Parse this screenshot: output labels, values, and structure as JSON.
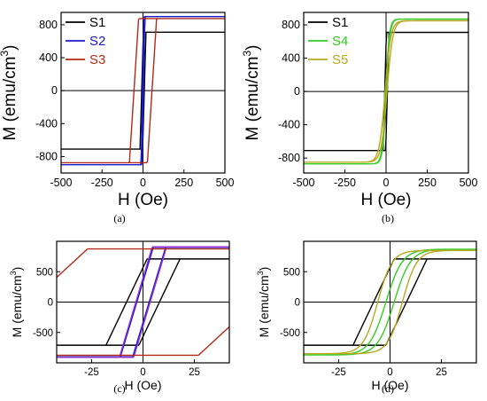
{
  "chart_data": [
    {
      "panel": "(a)",
      "type": "line",
      "xlabel": "H (Oe)",
      "ylabel": "M (emu/cm",
      "ylabel_sup": "3",
      "ylabel_close": ")",
      "xlim": [
        -500,
        500
      ],
      "ylim": [
        -1000,
        950
      ],
      "xticks": [
        -500,
        -250,
        0,
        250,
        500
      ],
      "yticks": [
        -800,
        -400,
        0,
        400,
        800
      ],
      "legend": "top-left",
      "series": [
        {
          "name": "S1",
          "color": "#000000",
          "ms": 710,
          "hc": 8,
          "w": 10,
          "loop": "linear"
        },
        {
          "name": "S2",
          "color": "#1a1acc",
          "ms": 900,
          "hc": 3,
          "w": 8,
          "loop": "linear"
        },
        {
          "name": "S3",
          "color": "#b22a1a",
          "ms": 875,
          "hc": 55,
          "w": 28,
          "loop": "linear"
        }
      ]
    },
    {
      "panel": "(b)",
      "type": "line",
      "xlabel": "H (Oe)",
      "ylabel": "M (emu/cm",
      "ylabel_sup": "3",
      "ylabel_close": ")",
      "xlim": [
        -500,
        500
      ],
      "ylim": [
        -980,
        950
      ],
      "xticks": [
        -500,
        -250,
        0,
        250,
        500
      ],
      "yticks": [
        -800,
        -400,
        0,
        400,
        800
      ],
      "legend": "top-left",
      "series": [
        {
          "name": "S1",
          "color": "#000000",
          "ms": 710,
          "hc": 8,
          "w": 10,
          "loop": "linear"
        },
        {
          "name": "S4",
          "color": "#33cc22",
          "ms": 870,
          "hc": 2,
          "w": 22,
          "loop": "tanh"
        },
        {
          "name": "S5",
          "color": "#b8a820",
          "ms": 850,
          "hc": 6,
          "w": 35,
          "loop": "tanh"
        }
      ]
    },
    {
      "panel": "(c)",
      "type": "line",
      "xlabel": "H (Oe)",
      "ylabel": "M (emu/cm",
      "ylabel_sup": "3",
      "ylabel_close": ")",
      "xlim": [
        -42,
        42
      ],
      "ylim": [
        -1000,
        1000
      ],
      "xticks": [
        -25,
        0,
        25
      ],
      "yticks": [
        -500,
        0,
        500
      ],
      "series": [
        {
          "name": "S1",
          "color": "#000000",
          "ms": 710,
          "hc": 8,
          "w": 10,
          "loop": "linear"
        },
        {
          "name": "S2",
          "color": "#1a1acc",
          "ms": 900,
          "hc": 3,
          "w": 8,
          "loop": "linear"
        },
        {
          "name": "S2",
          "color": "#9a33cc",
          "ms": 910,
          "hc": 3.5,
          "w": 8,
          "loop": "linear"
        },
        {
          "name": "S3",
          "color": "#b22a1a",
          "ms": 875,
          "hc": 55,
          "w": 28,
          "loop": "linear"
        }
      ]
    },
    {
      "panel": "(d)",
      "type": "line",
      "xlabel": "H (Oe)",
      "ylabel": "M (emu/cm",
      "ylabel_sup": "3",
      "ylabel_close": ")",
      "xlim": [
        -42,
        42
      ],
      "ylim": [
        -1000,
        1000
      ],
      "xticks": [
        -25,
        0,
        25
      ],
      "yticks": [
        -500,
        0,
        500
      ],
      "series": [
        {
          "name": "S1",
          "color": "#000000",
          "ms": 710,
          "hc": 8,
          "w": 10,
          "loop": "linear"
        },
        {
          "name": "S4",
          "color": "#33cc22",
          "ms": 870,
          "hc": 2,
          "w": 8,
          "loop": "tanh"
        },
        {
          "name": "S5",
          "color": "#b8a820",
          "ms": 850,
          "hc": 6,
          "w": 7,
          "loop": "tanh"
        }
      ]
    }
  ]
}
